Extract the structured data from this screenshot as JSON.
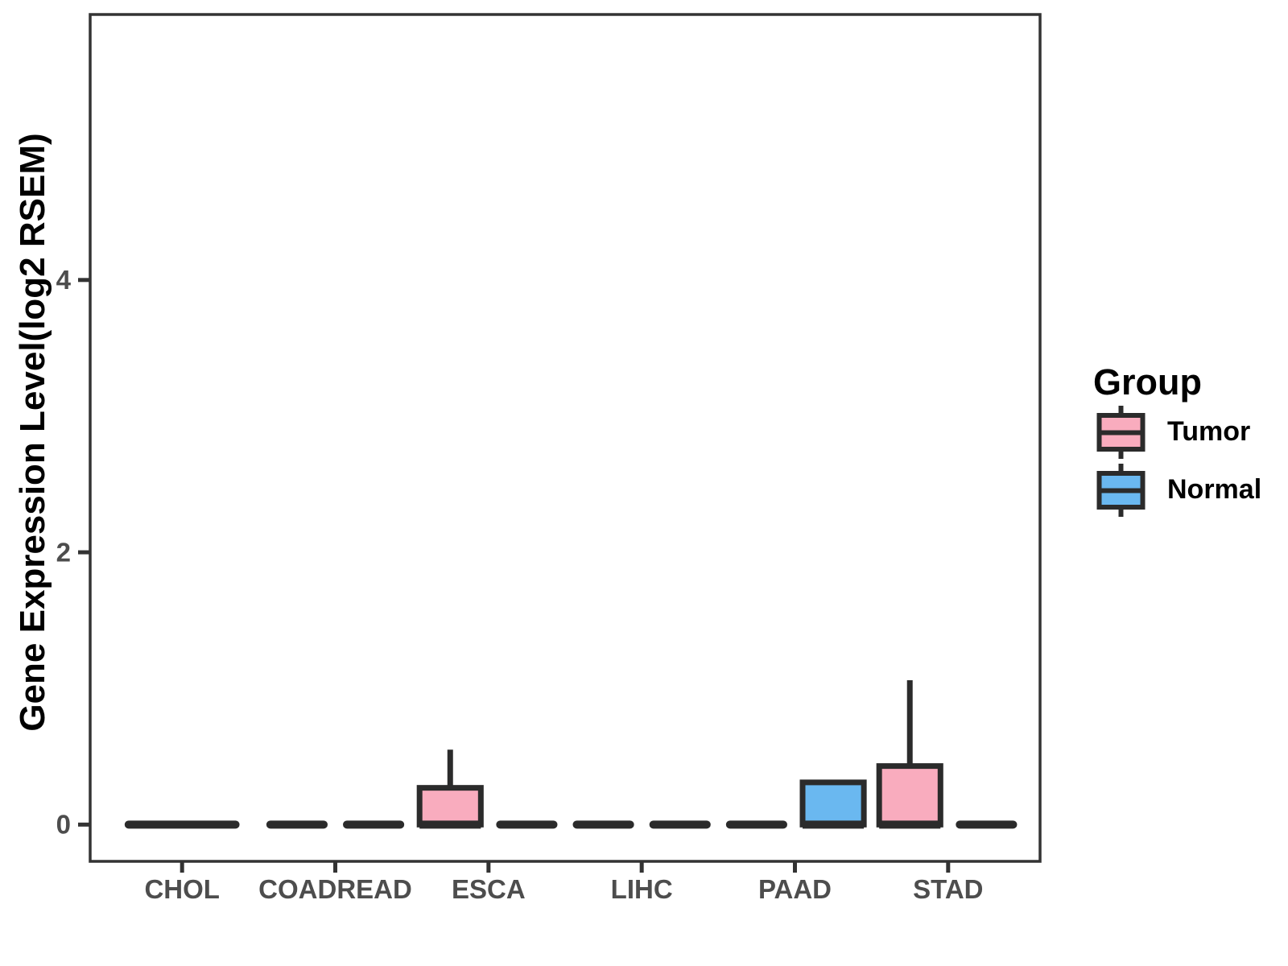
{
  "chart_data": {
    "type": "boxplot",
    "title": "",
    "xlabel": "",
    "ylabel": "Gene Expression Level(log2 RSEM)",
    "categories": [
      "CHOL",
      "COADREAD",
      "ESCA",
      "LIHC",
      "PAAD",
      "STAD"
    ],
    "groups": [
      "Tumor",
      "Normal"
    ],
    "yticks": [
      0,
      2,
      4
    ],
    "ylim": [
      -0.27,
      5.95
    ],
    "grid": false,
    "legend": {
      "title": "Group",
      "position": "right",
      "entries": [
        {
          "label": "Tumor",
          "color": "#F9ACBE"
        },
        {
          "label": "Normal",
          "color": "#6AB8F0"
        }
      ]
    },
    "boxes": [
      {
        "category": "CHOL",
        "group": "Tumor",
        "min": 0,
        "q1": 0,
        "median": 0,
        "q3": 0,
        "max": 0,
        "full_width": true
      },
      {
        "category": "COADREAD",
        "group": "Tumor",
        "min": 0,
        "q1": 0,
        "median": 0,
        "q3": 0,
        "max": 0
      },
      {
        "category": "COADREAD",
        "group": "Normal",
        "min": 0,
        "q1": 0,
        "median": 0,
        "q3": 0,
        "max": 0
      },
      {
        "category": "ESCA",
        "group": "Tumor",
        "min": 0,
        "q1": 0,
        "median": 0,
        "q3": 0.27,
        "max": 0.55
      },
      {
        "category": "ESCA",
        "group": "Normal",
        "min": 0,
        "q1": 0,
        "median": 0,
        "q3": 0,
        "max": 0
      },
      {
        "category": "LIHC",
        "group": "Tumor",
        "min": 0,
        "q1": 0,
        "median": 0,
        "q3": 0,
        "max": 0
      },
      {
        "category": "LIHC",
        "group": "Normal",
        "min": 0,
        "q1": 0,
        "median": 0,
        "q3": 0,
        "max": 0
      },
      {
        "category": "PAAD",
        "group": "Tumor",
        "min": 0,
        "q1": 0,
        "median": 0,
        "q3": 0,
        "max": 0
      },
      {
        "category": "PAAD",
        "group": "Normal",
        "min": 0,
        "q1": 0,
        "median": 0,
        "q3": 0.31,
        "max": 0.31
      },
      {
        "category": "STAD",
        "group": "Tumor",
        "min": 0,
        "q1": 0,
        "median": 0,
        "q3": 0.43,
        "max": 1.06
      },
      {
        "category": "STAD",
        "group": "Normal",
        "min": 0,
        "q1": 0,
        "median": 0,
        "q3": 0,
        "max": 0
      }
    ],
    "style": {
      "box_line_color": "#2B2B2B",
      "panel_border_color": "#333333",
      "tick_color": "#333333",
      "tick_label_color": "#4D4D4D",
      "axis_title_color": "#000000",
      "legend_text_color": "#000000",
      "background": "#FFFFFF"
    }
  }
}
